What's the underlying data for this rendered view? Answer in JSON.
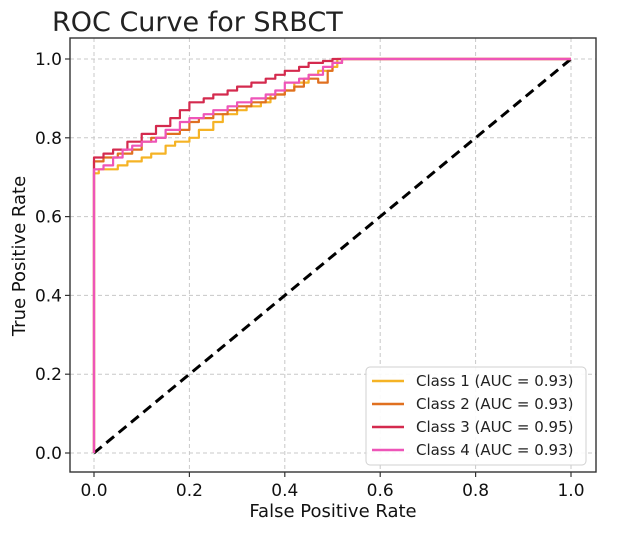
{
  "chart_data": {
    "type": "line",
    "title": "ROC Curve for SRBCT",
    "xlabel": "False Positive Rate",
    "ylabel": "True Positive Rate",
    "xlim": [
      0,
      1
    ],
    "ylim": [
      0,
      1
    ],
    "xticks": [
      0.0,
      0.2,
      0.4,
      0.6,
      0.8,
      1.0
    ],
    "yticks": [
      0.0,
      0.2,
      0.4,
      0.6,
      0.8,
      1.0
    ],
    "xtick_labels": [
      "0.0",
      "0.2",
      "0.4",
      "0.6",
      "0.8",
      "1.0"
    ],
    "ytick_labels": [
      "0.0",
      "0.2",
      "0.4",
      "0.6",
      "0.8",
      "1.0"
    ],
    "grid": true,
    "legend_position": "bottom-right",
    "series": [
      {
        "name": "Class 1 (AUC = 0.93)",
        "color": "#F5B325",
        "x": [
          0,
          0,
          0.01,
          0.03,
          0.05,
          0.07,
          0.1,
          0.12,
          0.15,
          0.17,
          0.2,
          0.22,
          0.25,
          0.27,
          0.3,
          0.32,
          0.35,
          0.37,
          0.4,
          0.42,
          0.45,
          0.47,
          0.5,
          0.51,
          1.0
        ],
        "y": [
          0,
          0.71,
          0.72,
          0.72,
          0.73,
          0.74,
          0.75,
          0.76,
          0.78,
          0.79,
          0.8,
          0.82,
          0.84,
          0.86,
          0.87,
          0.88,
          0.89,
          0.91,
          0.92,
          0.94,
          0.96,
          0.97,
          0.98,
          1.0,
          1.0
        ]
      },
      {
        "name": "Class 2 (AUC = 0.93)",
        "color": "#E07020",
        "x": [
          0,
          0,
          0.02,
          0.05,
          0.08,
          0.1,
          0.12,
          0.15,
          0.18,
          0.2,
          0.22,
          0.25,
          0.28,
          0.3,
          0.33,
          0.36,
          0.38,
          0.4,
          0.42,
          0.44,
          0.47,
          0.49,
          0.5,
          0.52,
          1.0
        ],
        "y": [
          0,
          0.74,
          0.75,
          0.76,
          0.77,
          0.79,
          0.8,
          0.81,
          0.82,
          0.84,
          0.85,
          0.86,
          0.87,
          0.88,
          0.89,
          0.9,
          0.91,
          0.92,
          0.93,
          0.95,
          0.94,
          0.97,
          0.99,
          1.0,
          1.0
        ]
      },
      {
        "name": "Class 3 (AUC = 0.95)",
        "color": "#D42A4E",
        "x": [
          0,
          0,
          0.02,
          0.04,
          0.07,
          0.1,
          0.13,
          0.16,
          0.18,
          0.2,
          0.23,
          0.25,
          0.28,
          0.3,
          0.33,
          0.36,
          0.38,
          0.4,
          0.43,
          0.45,
          0.48,
          0.5,
          1.0
        ],
        "y": [
          0,
          0.75,
          0.76,
          0.77,
          0.79,
          0.81,
          0.83,
          0.85,
          0.87,
          0.89,
          0.9,
          0.91,
          0.92,
          0.93,
          0.94,
          0.95,
          0.96,
          0.97,
          0.98,
          0.99,
          0.995,
          1.0,
          1.0
        ]
      },
      {
        "name": "Class 4 (AUC = 0.93)",
        "color": "#EE55B8",
        "x": [
          0,
          0,
          0.02,
          0.04,
          0.06,
          0.08,
          0.1,
          0.13,
          0.15,
          0.18,
          0.2,
          0.23,
          0.25,
          0.28,
          0.3,
          0.33,
          0.36,
          0.38,
          0.4,
          0.43,
          0.45,
          0.48,
          0.5,
          0.52,
          1.0
        ],
        "y": [
          0,
          0.72,
          0.73,
          0.75,
          0.77,
          0.78,
          0.79,
          0.8,
          0.82,
          0.84,
          0.85,
          0.86,
          0.87,
          0.88,
          0.89,
          0.9,
          0.91,
          0.92,
          0.94,
          0.95,
          0.96,
          0.98,
          0.99,
          1.0,
          1.0
        ]
      }
    ],
    "reference_line": {
      "x": [
        0,
        1
      ],
      "y": [
        0,
        1
      ],
      "color": "#000000",
      "style": "dashed"
    }
  }
}
